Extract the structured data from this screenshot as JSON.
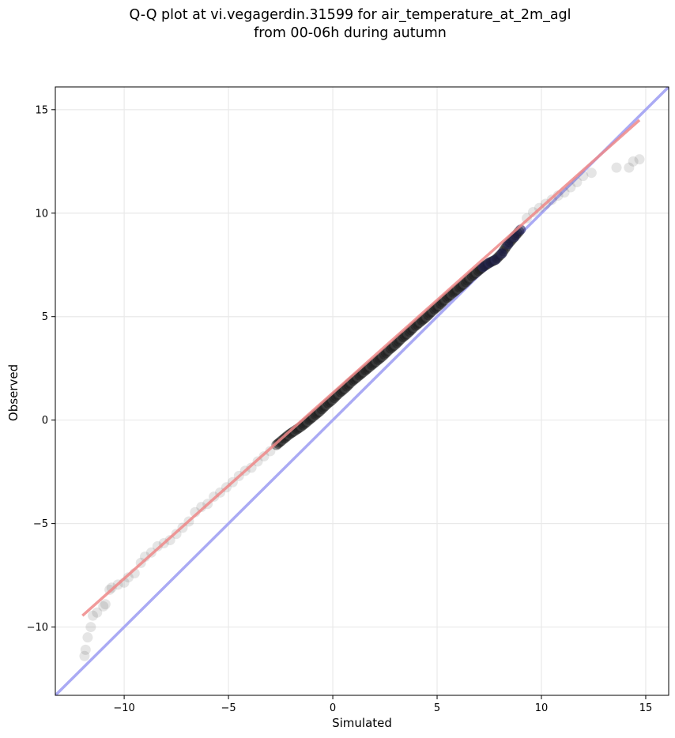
{
  "chart_data": {
    "type": "scatter",
    "title_lines": [
      "Q-Q plot at vi.vegagerdin.31599 for air_temperature_at_2m_agl",
      "from 00-06h during autumn"
    ],
    "xlabel": "Simulated",
    "ylabel": "Observed",
    "xlim": [
      -13.3,
      16.1
    ],
    "ylim": [
      -13.3,
      16.1
    ],
    "xticks": [
      -10,
      -5,
      0,
      5,
      10,
      15
    ],
    "yticks": [
      -10,
      -5,
      0,
      5,
      10,
      15
    ],
    "xtick_labels": [
      "−10",
      "−5",
      "0",
      "5",
      "10",
      "15"
    ],
    "ytick_labels": [
      "−10",
      "−5",
      "0",
      "5",
      "10",
      "15"
    ],
    "grid": true,
    "colors": {
      "points": "#444444",
      "dense_points": "#1a1a1a",
      "fit_line": "#ee8888",
      "identity_line": "#aaaaf4",
      "upper_tail_points": "#1a1a55"
    },
    "series": [
      {
        "type": "quantiles",
        "x": [
          -11.9,
          -11.85,
          -11.75,
          -11.6,
          -11.5,
          -11.3,
          -11.0,
          -10.9,
          -10.7,
          -10.6,
          -10.3,
          -10.0,
          -9.8,
          -9.5,
          -9.2,
          -9.0,
          -8.7,
          -8.4,
          -8.1,
          -7.8,
          -7.5,
          -7.2,
          -6.9,
          -6.6,
          -6.3,
          -6.0,
          -5.7,
          -5.4,
          -5.1,
          -4.8,
          -4.5,
          -4.2,
          -3.9,
          -3.6,
          -3.3,
          -3.0,
          -2.7,
          -2.4,
          -2.1,
          -1.8,
          -1.5,
          -1.2,
          -0.9,
          -0.6,
          -0.3,
          0.0,
          0.3,
          0.6,
          0.9,
          1.2,
          1.5,
          1.8,
          2.1,
          2.4,
          2.7,
          3.0,
          3.3,
          3.6,
          3.9,
          4.2,
          4.5,
          4.8,
          5.1,
          5.4,
          5.7,
          6.0,
          6.3,
          6.6,
          6.9,
          7.2,
          7.5,
          7.8,
          8.1,
          8.4,
          8.7,
          9.0,
          9.3,
          9.6,
          9.9,
          10.2,
          10.5,
          10.8,
          11.1,
          11.4,
          11.7,
          12.0,
          12.4,
          13.6,
          14.2,
          14.4,
          14.7
        ],
        "y": [
          -11.4,
          -11.1,
          -10.5,
          -10.0,
          -9.45,
          -9.3,
          -9.0,
          -8.9,
          -8.2,
          -8.1,
          -7.95,
          -7.85,
          -7.6,
          -7.4,
          -6.9,
          -6.6,
          -6.4,
          -6.1,
          -5.95,
          -5.8,
          -5.5,
          -5.2,
          -4.9,
          -4.45,
          -4.2,
          -4.05,
          -3.7,
          -3.5,
          -3.25,
          -3.0,
          -2.7,
          -2.45,
          -2.3,
          -2.0,
          -1.75,
          -1.5,
          -1.2,
          -0.95,
          -0.7,
          -0.5,
          -0.3,
          -0.05,
          0.2,
          0.45,
          0.75,
          1.0,
          1.3,
          1.55,
          1.85,
          2.1,
          2.35,
          2.6,
          2.85,
          3.1,
          3.4,
          3.65,
          3.95,
          4.2,
          4.5,
          4.75,
          5.0,
          5.3,
          5.55,
          5.85,
          6.1,
          6.35,
          6.6,
          6.9,
          7.15,
          7.4,
          7.6,
          7.75,
          8.05,
          8.5,
          8.85,
          9.2,
          9.75,
          10.05,
          10.25,
          10.45,
          10.65,
          10.85,
          11.0,
          11.25,
          11.5,
          11.8,
          11.95,
          12.2,
          12.2,
          12.5,
          12.6
        ]
      }
    ],
    "fit_line": {
      "x": [
        -12.0,
        14.7
      ],
      "y": [
        -9.45,
        14.5
      ]
    },
    "identity_line": {
      "x": [
        -13.3,
        16.1
      ],
      "y": [
        -13.3,
        16.1
      ]
    }
  }
}
